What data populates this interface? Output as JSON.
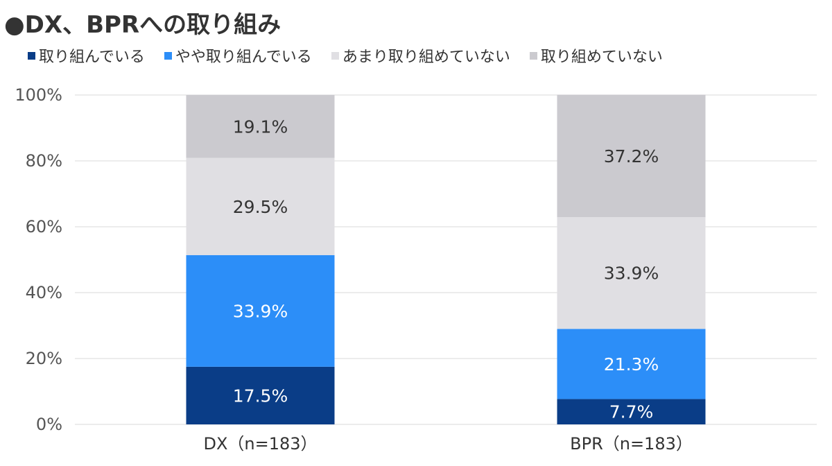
{
  "title": "●DX、BPRへの取り組み",
  "chart_data": {
    "type": "bar",
    "stacked": true,
    "categories": [
      "DX（n=183）",
      "BPR（n=183）"
    ],
    "series": [
      {
        "name": "取り組んでいる",
        "values": [
          17.5,
          7.7
        ],
        "labels": [
          "17.5%",
          "7.7%"
        ],
        "color": "#0a3d87",
        "label_color": "#ffffff"
      },
      {
        "name": "やや取り組んでいる",
        "values": [
          33.9,
          21.3
        ],
        "labels": [
          "33.9%",
          "21.3%"
        ],
        "color": "#2c8ef8",
        "label_color": "#ffffff"
      },
      {
        "name": "あまり取り組めていない",
        "values": [
          29.5,
          33.9
        ],
        "labels": [
          "29.5%",
          "33.9%"
        ],
        "color": "#e0dfe3",
        "label_color": "#333333"
      },
      {
        "name": "取り組めていない",
        "values": [
          19.1,
          37.2
        ],
        "labels": [
          "19.1%",
          "37.2%"
        ],
        "color": "#cbcacf",
        "label_color": "#333333"
      }
    ],
    "ylim": [
      0,
      100
    ],
    "yticks": [
      0,
      20,
      40,
      60,
      80,
      100
    ],
    "ytick_labels": [
      "0%",
      "20%",
      "40%",
      "60%",
      "80%",
      "100%"
    ],
    "xlabel": "",
    "ylabel": "",
    "grid": true,
    "legend_position": "top-left"
  }
}
